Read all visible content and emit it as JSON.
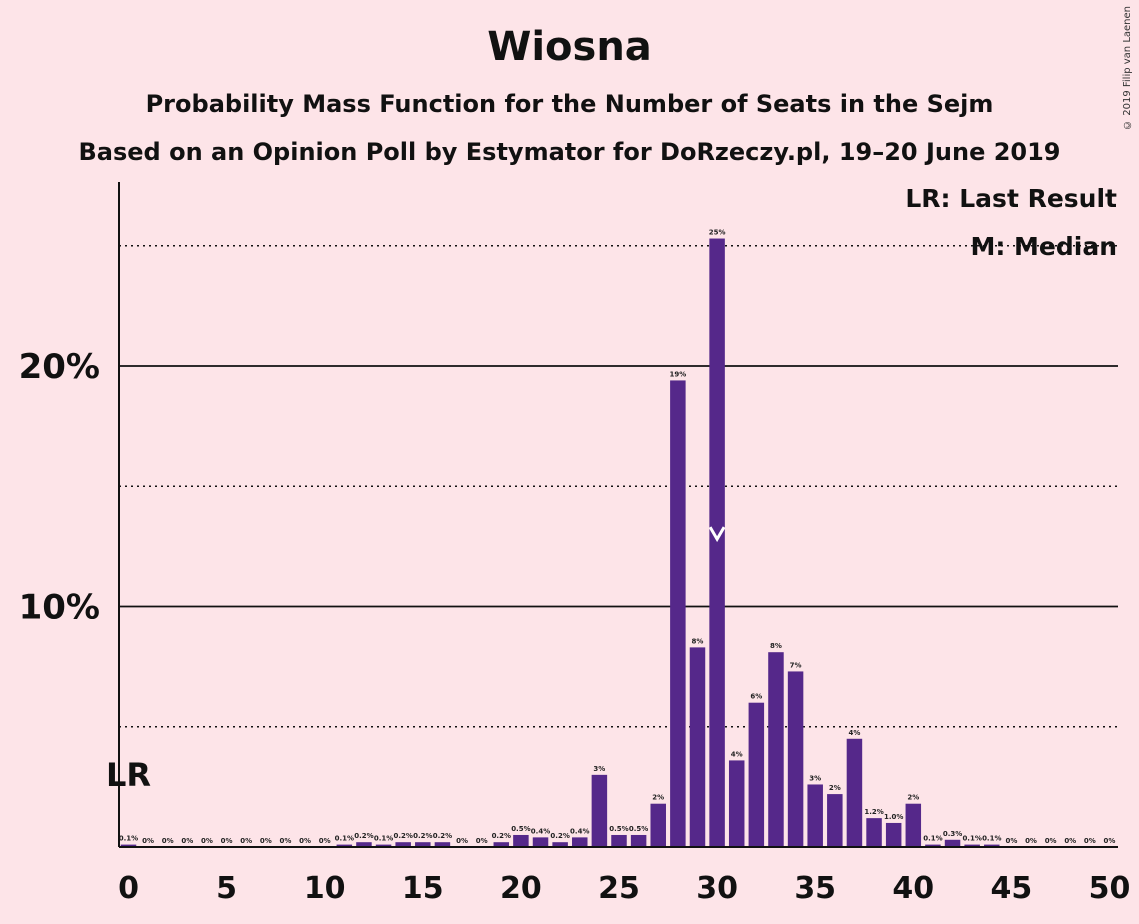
{
  "header": {
    "title": "Wiosna",
    "subtitle1": "Probability Mass Function for the Number of Seats in the Sejm",
    "subtitle2": "Based on an Opinion Poll by Estymator for DoRzeczy.pl, 19–20 June 2019",
    "copyright": "© 2019 Filip van Laenen"
  },
  "legend": {
    "last_result": "LR: Last Result",
    "median": "M: Median"
  },
  "chart_data": {
    "type": "bar",
    "title": "Wiosna",
    "xlabel": "",
    "ylabel": "",
    "xlim": [
      0,
      50
    ],
    "ylim": [
      0,
      27.5
    ],
    "x_ticks": [
      "0",
      "5",
      "10",
      "15",
      "20",
      "25",
      "30",
      "35",
      "40",
      "45",
      "50"
    ],
    "y_ticks": [
      "10%",
      "20%"
    ],
    "last_result_seat": 0,
    "last_result_label": "LR",
    "median_seat": 30,
    "bar_color": "#55288a",
    "background_color": "#fde4e8",
    "categories": [
      0,
      1,
      2,
      3,
      4,
      5,
      6,
      7,
      8,
      9,
      10,
      11,
      12,
      13,
      14,
      15,
      16,
      17,
      18,
      19,
      20,
      21,
      22,
      23,
      24,
      25,
      26,
      27,
      28,
      29,
      30,
      31,
      32,
      33,
      34,
      35,
      36,
      37,
      38,
      39,
      40,
      41,
      42,
      43,
      44,
      45,
      46,
      47,
      48,
      49,
      50
    ],
    "values": [
      0.1,
      0,
      0,
      0,
      0,
      0,
      0,
      0,
      0,
      0,
      0,
      0.1,
      0.2,
      0.1,
      0.2,
      0.2,
      0.2,
      0,
      0,
      0.2,
      0.5,
      0.4,
      0.2,
      0.4,
      3.0,
      0.5,
      0.5,
      1.8,
      19.4,
      8.3,
      25.3,
      3.6,
      6.0,
      8.1,
      7.3,
      2.6,
      2.2,
      4.5,
      1.2,
      1.0,
      1.8,
      0.1,
      0.3,
      0.1,
      0.1,
      0,
      0,
      0,
      0,
      0,
      0
    ],
    "labels": [
      "0.1%",
      "0%",
      "0%",
      "0%",
      "0%",
      "0%",
      "0%",
      "0%",
      "0%",
      "0%",
      "0%",
      "0.1%",
      "0.2%",
      "0.1%",
      "0.2%",
      "0.2%",
      "0.2%",
      "0%",
      "0%",
      "0.2%",
      "0.5%",
      "0.4%",
      "0.2%",
      "0.4%",
      "3%",
      "0.5%",
      "0.5%",
      "2%",
      "19%",
      "8%",
      "25%",
      "4%",
      "6%",
      "8%",
      "7%",
      "3%",
      "2%",
      "4%",
      "1.2%",
      "1.0%",
      "2%",
      "0.1%",
      "0.3%",
      "0.1%",
      "0.1%",
      "0%",
      "0%",
      "0%",
      "0%",
      "0%",
      "0%"
    ]
  }
}
